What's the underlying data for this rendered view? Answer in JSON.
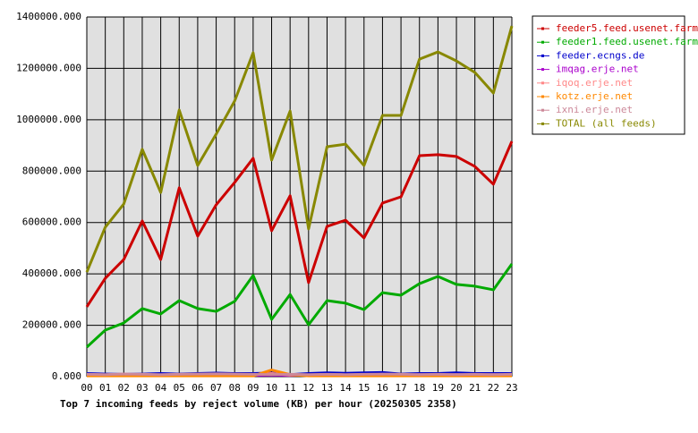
{
  "chart_data": {
    "type": "line",
    "title": "Top 7 incoming feeds by reject volume (KB) per hour (20250305 2358)",
    "categories": [
      "00",
      "01",
      "02",
      "03",
      "04",
      "05",
      "06",
      "07",
      "08",
      "09",
      "10",
      "11",
      "12",
      "13",
      "14",
      "15",
      "16",
      "17",
      "18",
      "19",
      "20",
      "21",
      "22",
      "23"
    ],
    "ylim": [
      0,
      1400000
    ],
    "yticks": [
      {
        "value": 0,
        "label": "0.000"
      },
      {
        "value": 200000,
        "label": "200000.000"
      },
      {
        "value": 400000,
        "label": "400000.000"
      },
      {
        "value": 600000,
        "label": "600000.000"
      },
      {
        "value": 800000,
        "label": "800000.000"
      },
      {
        "value": 1000000,
        "label": "1000000.000"
      },
      {
        "value": 1200000,
        "label": "1200000.000"
      },
      {
        "value": 1400000,
        "label": "1400000.000"
      }
    ],
    "grid": true,
    "legend": "right",
    "series": [
      {
        "name": "feeder5.feed.usenet.farm",
        "color": "#cc0000",
        "values": [
          272000,
          383000,
          456000,
          606000,
          456000,
          735000,
          547000,
          669000,
          756000,
          850000,
          568000,
          704000,
          366000,
          585000,
          609000,
          540000,
          676000,
          700000,
          860000,
          864000,
          857000,
          818000,
          749000,
          916000
        ]
      },
      {
        "name": "feeder1.feed.usenet.farm",
        "color": "#00aa00",
        "values": [
          115000,
          181000,
          209000,
          265000,
          244000,
          296000,
          265000,
          254000,
          293000,
          394000,
          223000,
          320000,
          202000,
          296000,
          286000,
          261000,
          327000,
          317000,
          362000,
          390000,
          359000,
          352000,
          338000,
          439000
        ]
      },
      {
        "name": "feeder.ecngs.de",
        "color": "#0000cc",
        "values": [
          12000,
          10000,
          9000,
          10000,
          12000,
          10000,
          12000,
          14000,
          12000,
          12000,
          14000,
          8000,
          12000,
          15000,
          13000,
          15000,
          16000,
          10000,
          12000,
          12000,
          15000,
          12000,
          12000,
          12000
        ]
      },
      {
        "name": "imqag.erje.net",
        "color": "#aa00cc",
        "values": [
          6000,
          5000,
          6000,
          5000,
          6000,
          5000,
          6000,
          5000,
          6000,
          5000,
          6000,
          5000,
          6000,
          5000,
          6000,
          5000,
          6000,
          5000,
          6000,
          5000,
          6000,
          5000,
          6000,
          5000
        ]
      },
      {
        "name": "iqoq.erje.net",
        "color": "#ff8888",
        "values": [
          8000,
          7000,
          10000,
          6000,
          7000,
          8000,
          7000,
          9000,
          8000,
          7000,
          12000,
          6000,
          7000,
          8000,
          7000,
          8000,
          7000,
          6000,
          8000,
          7000,
          8000,
          7000,
          8000,
          7000
        ]
      },
      {
        "name": "kotz.erje.net",
        "color": "#ff8800",
        "values": [
          3000,
          3000,
          3000,
          3000,
          3000,
          3000,
          3000,
          3000,
          3000,
          3000,
          26000,
          8000,
          3000,
          3000,
          3000,
          3000,
          3000,
          3000,
          3000,
          3000,
          3000,
          3000,
          3000,
          3000
        ]
      },
      {
        "name": "ixni.erje.net",
        "color": "#cc8899",
        "values": [
          9000,
          8000,
          10000,
          9000,
          8000,
          9000,
          10000,
          11000,
          10000,
          9000,
          8000,
          9000,
          8000,
          9000,
          8000,
          9000,
          10000,
          9000,
          8000,
          9000,
          8000,
          9000,
          8000,
          9000
        ]
      },
      {
        "name": "TOTAL (all feeds)",
        "color": "#888800",
        "values": [
          407000,
          582000,
          672000,
          885000,
          717000,
          1038000,
          822000,
          944000,
          1073000,
          1261000,
          843000,
          1034000,
          575000,
          895000,
          905000,
          822000,
          1017000,
          1017000,
          1236000,
          1264000,
          1229000,
          1184000,
          1104000,
          1365000
        ]
      }
    ]
  }
}
